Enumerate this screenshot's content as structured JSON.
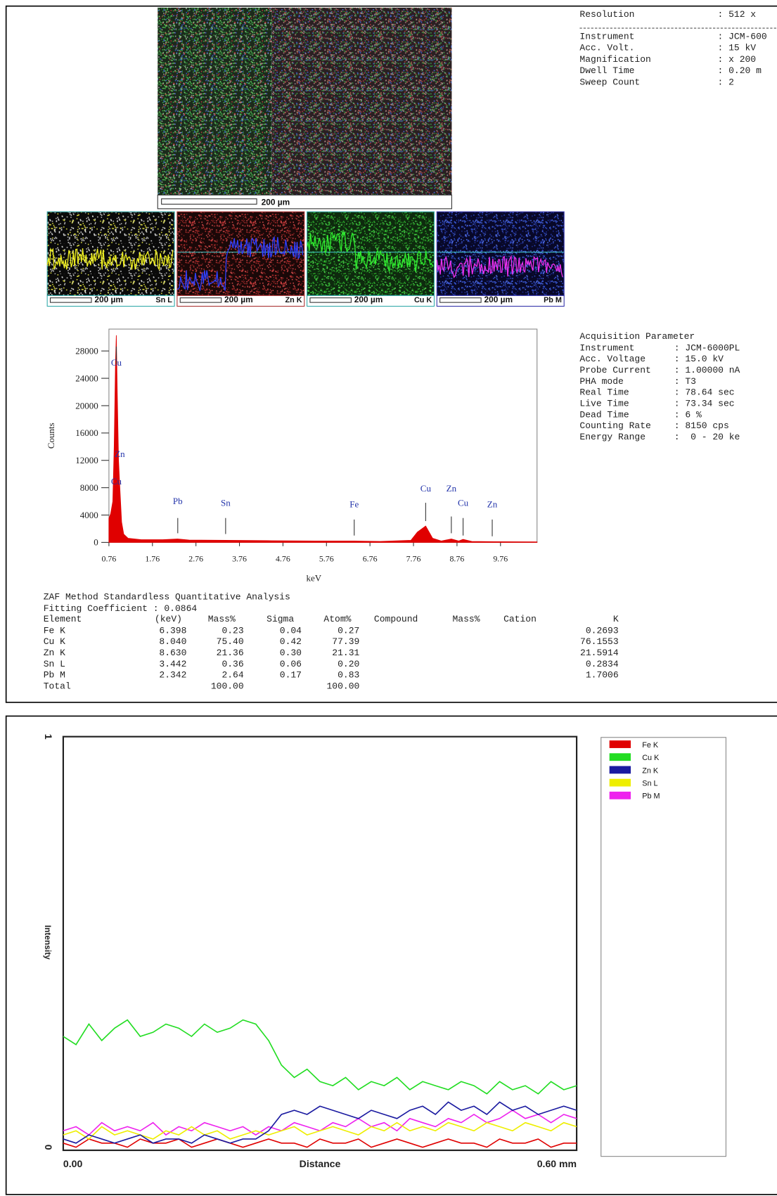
{
  "image_info": {
    "rows": [
      {
        "label": "Resolution",
        "value": ": 512 x"
      },
      {
        "label": "Instrument",
        "value": ": JCM-600"
      },
      {
        "label": "Acc. Volt.",
        "value": ": 15 kV"
      },
      {
        "label": "Magnification",
        "value": ": x 200"
      },
      {
        "label": "Dwell Time",
        "value": ": 0.20 m"
      },
      {
        "label": "Sweep Count",
        "value": ": 2"
      }
    ]
  },
  "maps": {
    "main_scale": "200 µm",
    "panels": [
      {
        "scale": "200 µm",
        "element": "Sn L"
      },
      {
        "scale": "200 µm",
        "element": "Zn K"
      },
      {
        "scale": "200 µm",
        "element": "Cu K"
      },
      {
        "scale": "200 µm",
        "element": "Pb M"
      }
    ]
  },
  "acquisition": {
    "title": "Acquisition Parameter",
    "rows": [
      {
        "label": "Instrument",
        "value": ": JCM-6000PL"
      },
      {
        "label": "Acc. Voltage",
        "value": ": 15.0 kV"
      },
      {
        "label": "Probe Current",
        "value": ": 1.00000 nA"
      },
      {
        "label": "PHA mode",
        "value": ": T3"
      },
      {
        "label": "Real Time",
        "value": ": 78.64 sec"
      },
      {
        "label": "Live Time",
        "value": ": 73.34 sec"
      },
      {
        "label": "Dead Time",
        "value": ": 6 %"
      },
      {
        "label": "Counting Rate",
        "value": ": 8150 cps"
      },
      {
        "label": "Energy Range",
        "value": ":  0 - 20 ke"
      }
    ]
  },
  "chart_data": [
    {
      "type": "area",
      "x_label": "keV",
      "y_label": "Counts",
      "color": "#e00000",
      "x": [
        0.76,
        0.8,
        0.85,
        0.88,
        0.91,
        0.93,
        0.95,
        0.98,
        1.01,
        1.05,
        1.1,
        1.2,
        1.5,
        2.0,
        2.34,
        2.6,
        3.44,
        4.5,
        5.5,
        6.4,
        7.0,
        7.7,
        7.85,
        8.04,
        8.2,
        8.4,
        8.63,
        8.8,
        8.9,
        9.1,
        9.6,
        10.6
      ],
      "values": [
        3500,
        4200,
        6000,
        14000,
        26000,
        30300,
        22000,
        12000,
        8000,
        3000,
        1200,
        600,
        400,
        400,
        500,
        350,
        300,
        250,
        200,
        200,
        150,
        300,
        1500,
        2400,
        600,
        200,
        500,
        200,
        450,
        150,
        100,
        80
      ],
      "xlim": [
        0.76,
        10.6
      ],
      "ylim": [
        0,
        31200
      ],
      "xticks": [
        0.76,
        1.76,
        2.76,
        3.76,
        4.76,
        5.76,
        6.76,
        7.76,
        8.76,
        9.76
      ],
      "yticks": [
        0,
        4000,
        8000,
        12000,
        16000,
        20000,
        24000,
        28000
      ],
      "annotations": [
        {
          "label": "Cu",
          "x": 0.93
        },
        {
          "label": "Zn",
          "x": 1.01
        },
        {
          "label": "Cu",
          "x": 0.93
        },
        {
          "label": "Pb",
          "x": 2.342
        },
        {
          "label": "Sn",
          "x": 3.442
        },
        {
          "label": "Fe",
          "x": 6.398
        },
        {
          "label": "Cu",
          "x": 8.04
        },
        {
          "label": "Zn",
          "x": 8.63
        },
        {
          "label": "Cu",
          "x": 8.9
        },
        {
          "label": "Zn",
          "x": 9.57
        }
      ]
    },
    {
      "type": "line",
      "x_label": "Distance",
      "y_label": "Intensity",
      "x": [
        0,
        0.015,
        0.03,
        0.045,
        0.06,
        0.075,
        0.09,
        0.105,
        0.12,
        0.135,
        0.15,
        0.165,
        0.18,
        0.195,
        0.21,
        0.225,
        0.24,
        0.255,
        0.27,
        0.285,
        0.3,
        0.315,
        0.33,
        0.345,
        0.36,
        0.375,
        0.39,
        0.405,
        0.42,
        0.435,
        0.45,
        0.465,
        0.48,
        0.495,
        0.51,
        0.525,
        0.54,
        0.555,
        0.57,
        0.585,
        0.6
      ],
      "xlim": [
        0,
        0.6
      ],
      "ylim": [
        0,
        1
      ],
      "xticks": [
        {
          "value": 0,
          "label": "0.00"
        },
        {
          "value": 0.6,
          "label": "0.60 mm"
        }
      ],
      "yticks": [
        0,
        1
      ],
      "series": [
        {
          "name": "Fe K",
          "color": "#e00000",
          "values": [
            0.01,
            0,
            0.02,
            0.01,
            0.01,
            0,
            0.02,
            0.01,
            0.01,
            0.02,
            0,
            0.01,
            0.02,
            0.01,
            0,
            0.01,
            0.02,
            0.01,
            0.01,
            0,
            0.02,
            0.01,
            0.01,
            0.02,
            0,
            0.01,
            0.02,
            0.01,
            0,
            0.01,
            0.02,
            0.01,
            0.01,
            0,
            0.02,
            0.01,
            0.01,
            0.02,
            0,
            0.01,
            0.01
          ]
        },
        {
          "name": "Cu K",
          "color": "#22dd22",
          "values": [
            0.27,
            0.25,
            0.3,
            0.26,
            0.29,
            0.31,
            0.27,
            0.28,
            0.3,
            0.29,
            0.27,
            0.3,
            0.28,
            0.29,
            0.31,
            0.3,
            0.26,
            0.2,
            0.17,
            0.19,
            0.16,
            0.15,
            0.17,
            0.14,
            0.16,
            0.15,
            0.17,
            0.14,
            0.16,
            0.15,
            0.14,
            0.16,
            0.15,
            0.13,
            0.16,
            0.14,
            0.15,
            0.13,
            0.16,
            0.14,
            0.15
          ]
        },
        {
          "name": "Zn K",
          "color": "#1a1aa0",
          "values": [
            0.02,
            0.01,
            0.03,
            0.02,
            0.01,
            0.02,
            0.03,
            0.01,
            0.02,
            0.02,
            0.01,
            0.03,
            0.02,
            0.01,
            0.02,
            0.02,
            0.04,
            0.08,
            0.09,
            0.08,
            0.1,
            0.09,
            0.08,
            0.07,
            0.09,
            0.08,
            0.07,
            0.09,
            0.1,
            0.08,
            0.11,
            0.09,
            0.1,
            0.08,
            0.11,
            0.09,
            0.1,
            0.08,
            0.09,
            0.1,
            0.09
          ]
        },
        {
          "name": "Sn L",
          "color": "#eeee00",
          "values": [
            0.03,
            0.04,
            0.02,
            0.05,
            0.03,
            0.04,
            0.03,
            0.02,
            0.04,
            0.03,
            0.05,
            0.03,
            0.04,
            0.02,
            0.03,
            0.04,
            0.03,
            0.04,
            0.05,
            0.03,
            0.04,
            0.05,
            0.04,
            0.03,
            0.05,
            0.04,
            0.06,
            0.04,
            0.05,
            0.04,
            0.06,
            0.05,
            0.04,
            0.06,
            0.05,
            0.04,
            0.06,
            0.05,
            0.04,
            0.06,
            0.05
          ]
        },
        {
          "name": "Pb M",
          "color": "#ee22ee",
          "values": [
            0.04,
            0.05,
            0.03,
            0.06,
            0.04,
            0.05,
            0.04,
            0.06,
            0.03,
            0.05,
            0.04,
            0.06,
            0.05,
            0.04,
            0.05,
            0.03,
            0.05,
            0.04,
            0.06,
            0.05,
            0.04,
            0.06,
            0.05,
            0.07,
            0.05,
            0.06,
            0.04,
            0.07,
            0.06,
            0.05,
            0.07,
            0.06,
            0.08,
            0.06,
            0.07,
            0.09,
            0.07,
            0.08,
            0.06,
            0.08,
            0.07
          ]
        }
      ]
    }
  ],
  "quant_table": {
    "title": "ZAF Method Standardless Quantitative Analysis",
    "fitting": "Fitting Coefficient : 0.0864",
    "headers": [
      "Element",
      "(keV)",
      "Mass%",
      "Sigma",
      "Atom%",
      "Compound",
      "Mass%",
      "Cation",
      "K"
    ],
    "rows": [
      [
        "Fe K",
        "6.398",
        "0.23",
        "0.04",
        "0.27",
        "0.2693"
      ],
      [
        "Cu K",
        "8.040",
        "75.40",
        "0.42",
        "77.39",
        "76.1553"
      ],
      [
        "Zn K",
        "8.630",
        "21.36",
        "0.30",
        "21.31",
        "21.5914"
      ],
      [
        "Sn L",
        "3.442",
        "0.36",
        "0.06",
        "0.20",
        "0.2834"
      ],
      [
        "Pb M",
        "2.342",
        "2.64",
        "0.17",
        "0.83",
        "1.7006"
      ]
    ],
    "total": {
      "label": "Total",
      "mass": "100.00",
      "atom": "100.00"
    }
  }
}
